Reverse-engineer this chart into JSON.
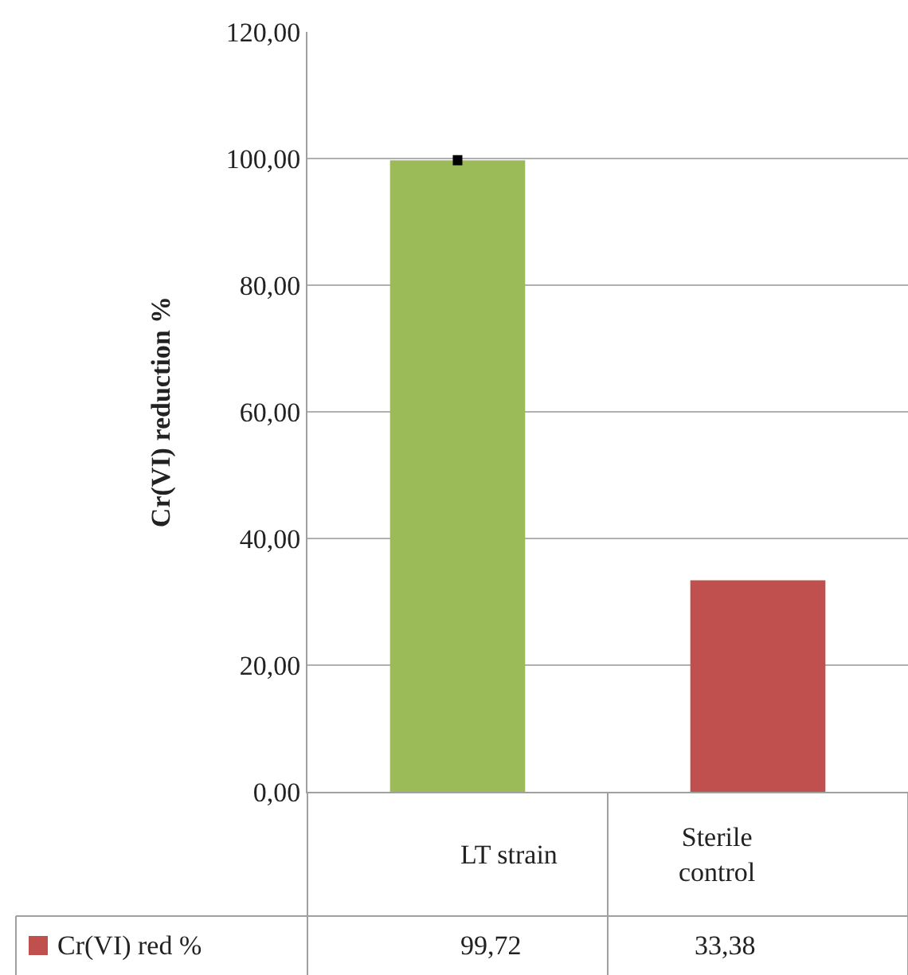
{
  "chart_data": {
    "type": "bar",
    "ylabel": "Cr(VI) reduction %",
    "categories": [
      "LT strain",
      "Sterile control"
    ],
    "series": [
      {
        "name": "Cr(VI) red %",
        "color": "#c0504d",
        "colors": [
          "#9bbb59",
          "#c0504d"
        ],
        "values": [
          99.72,
          33.38
        ],
        "errors": [
          0.3,
          null
        ],
        "value_labels": [
          "99,72",
          "33,38"
        ]
      }
    ],
    "ylim": [
      0,
      120
    ],
    "yticks": [
      {
        "value": 0,
        "label": "0,00"
      },
      {
        "value": 20,
        "label": "20,00"
      },
      {
        "value": 40,
        "label": "40,00"
      },
      {
        "value": 60,
        "label": "60,00"
      },
      {
        "value": 80,
        "label": "80,00"
      },
      {
        "value": 100,
        "label": "100,00"
      },
      {
        "value": 120,
        "label": "120,00"
      }
    ],
    "grid": "y",
    "legend": "bottom left"
  }
}
